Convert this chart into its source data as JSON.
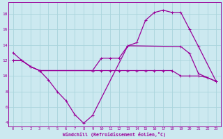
{
  "xlabel": "Windchill (Refroidissement éolien,°C)",
  "background_color": "#cce9f0",
  "grid_color": "#aad4dc",
  "line_color": "#990099",
  "ylim": [
    3.5,
    19.5
  ],
  "yticks": [
    4,
    6,
    8,
    10,
    12,
    14,
    16,
    18
  ],
  "xlim": [
    -0.5,
    23.5
  ],
  "line1_x": [
    0,
    1,
    2,
    3,
    4,
    5,
    6,
    7,
    8,
    9,
    13,
    19,
    20,
    21,
    23
  ],
  "line1_y": [
    13,
    12,
    11.2,
    10.7,
    9.5,
    8.0,
    6.8,
    5.0,
    3.9,
    4.9,
    13.9,
    13.8,
    12.9,
    10.3,
    9.3
  ],
  "line2_x": [
    0,
    1,
    2,
    3,
    9,
    10,
    11,
    12,
    13,
    14,
    15,
    16,
    17,
    18,
    19,
    20,
    21,
    23
  ],
  "line2_y": [
    12,
    12,
    11.2,
    10.7,
    10.7,
    12.3,
    12.3,
    12.3,
    13.9,
    14.3,
    17.2,
    18.2,
    18.5,
    18.2,
    18.2,
    16.0,
    13.8,
    9.3
  ],
  "line3_x": [
    0,
    1,
    2,
    3,
    9,
    10,
    11,
    12,
    13,
    14,
    15,
    16,
    17,
    18,
    19,
    20,
    21,
    22,
    23
  ],
  "line3_y": [
    12,
    12,
    11.2,
    10.7,
    10.7,
    10.7,
    10.7,
    10.7,
    10.7,
    10.7,
    10.7,
    10.7,
    10.7,
    10.7,
    10.0,
    10.0,
    10.0,
    9.8,
    9.3
  ]
}
